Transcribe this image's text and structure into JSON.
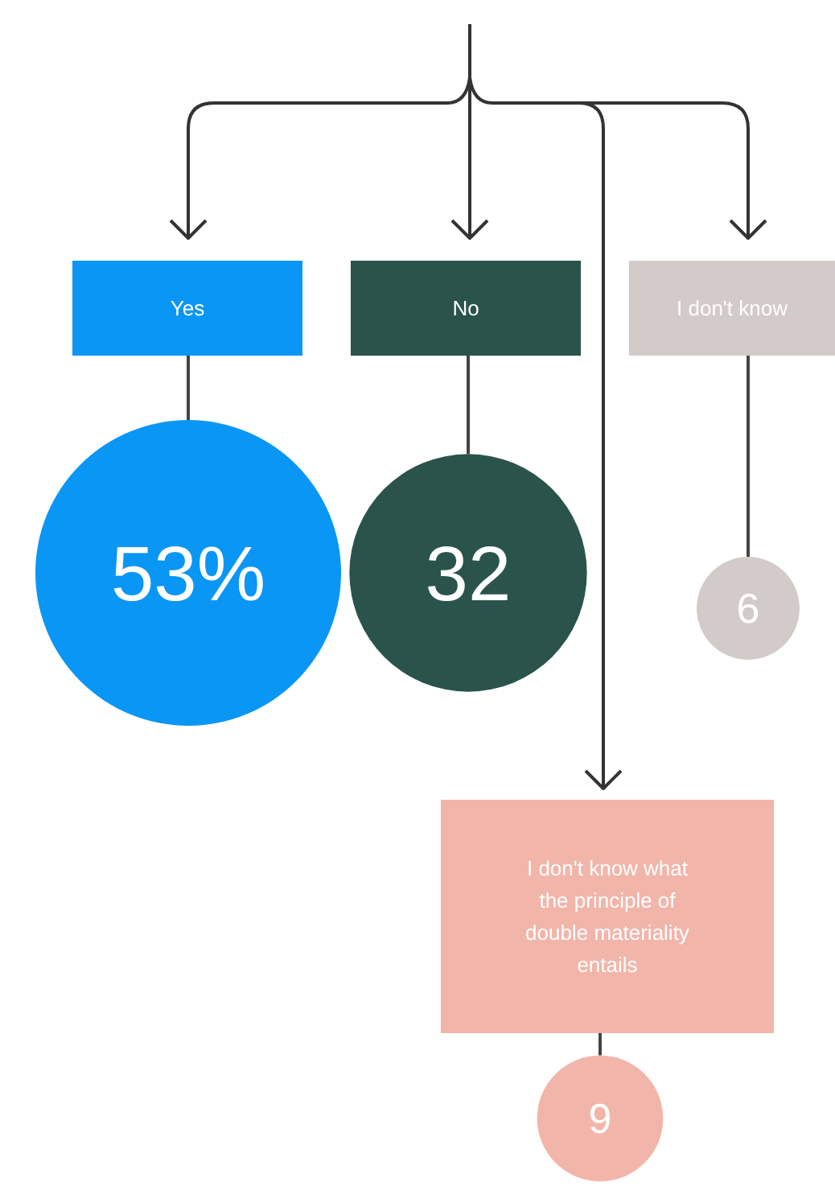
{
  "chart_data": {
    "type": "other",
    "categories": [
      "Yes",
      "No",
      "I don't know",
      "I don't know what the principle of double materiality entails"
    ],
    "values": [
      53,
      32,
      6,
      9
    ],
    "value_labels": [
      "53%",
      "32",
      "6",
      "9"
    ],
    "colors": [
      "#0a96f5",
      "#2a534b",
      "#d3cbc9",
      "#f2b5aa"
    ]
  }
}
